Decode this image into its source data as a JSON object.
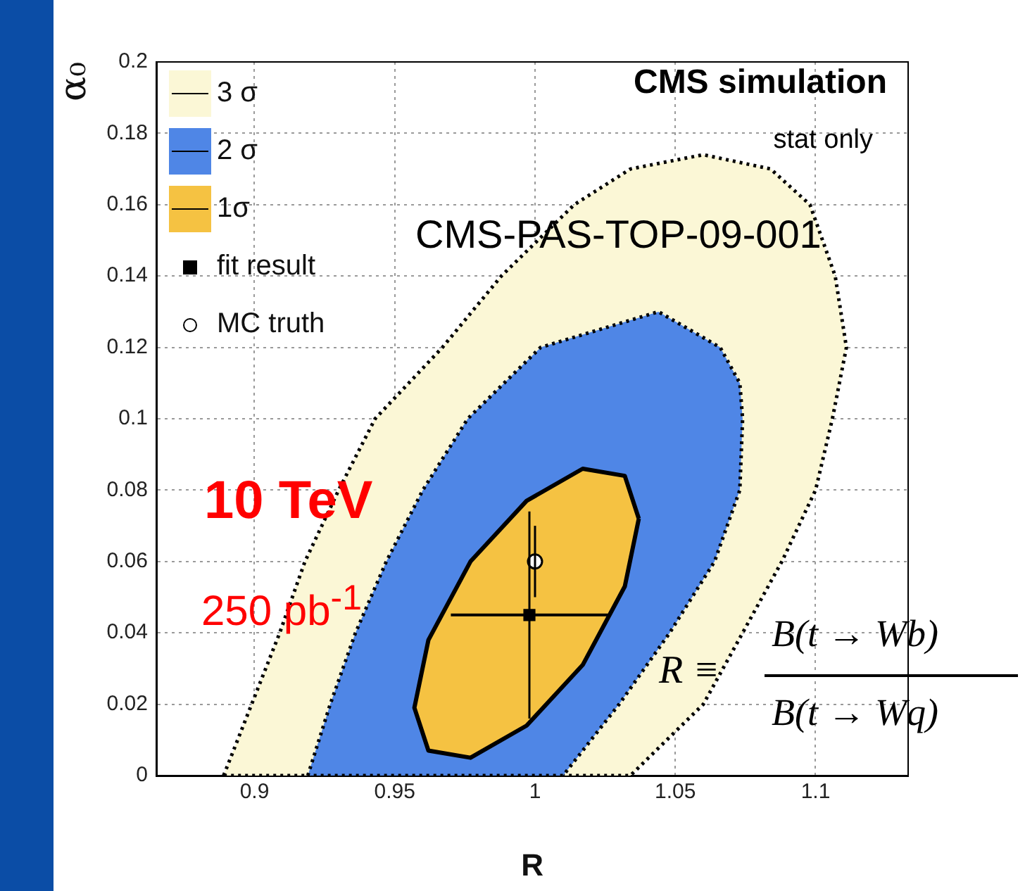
{
  "chart_data": {
    "type": "area",
    "xlabel": "R",
    "ylabel": "α₀",
    "xlim": [
      0.865,
      1.133
    ],
    "ylim": [
      0,
      0.2
    ],
    "xticks": [
      0.9,
      0.95,
      1,
      1.05,
      1.1
    ],
    "yticks": [
      0,
      0.02,
      0.04,
      0.06,
      0.08,
      0.1,
      0.12,
      0.14,
      0.16,
      0.18,
      0.2
    ],
    "grid": true,
    "legend": "top left",
    "annotations": [
      "CMS simulation",
      "stat only",
      "CMS-PAS-TOP-09-001",
      "10 TeV",
      "250 pb$^{-1}$",
      "R ≡",
      "B(t → Wb)",
      "B(t → Wq)"
    ],
    "series": [
      {
        "name": "3 σ",
        "color": "#fbf7d6",
        "line_style": "dotted",
        "x": [
          0.889,
          0.899,
          0.909,
          0.918,
          0.93,
          0.943,
          0.967,
          0.988,
          1.014,
          1.034,
          1.06,
          1.084,
          1.098,
          1.107,
          1.111,
          1.106,
          1.1,
          1.088,
          1.074,
          1.06,
          1.034
        ],
        "values": [
          0,
          0.02,
          0.04,
          0.06,
          0.08,
          0.1,
          0.12,
          0.14,
          0.16,
          0.17,
          0.174,
          0.17,
          0.16,
          0.14,
          0.12,
          0.1,
          0.08,
          0.06,
          0.04,
          0.02,
          0
        ]
      },
      {
        "name": "2 σ",
        "color": "#4f86e6",
        "line_style": "dotted",
        "x": [
          0.919,
          0.927,
          0.936,
          0.947,
          0.96,
          0.976,
          1.002,
          1.044,
          1.066,
          1.073,
          1.074,
          1.073,
          1.064,
          1.048,
          1.03,
          1.01
        ],
        "values": [
          0,
          0.02,
          0.04,
          0.06,
          0.08,
          0.1,
          0.12,
          0.13,
          0.12,
          0.11,
          0.1,
          0.08,
          0.06,
          0.04,
          0.02,
          0
        ]
      },
      {
        "name": "1σ",
        "color": "#f5c242",
        "line_style": "solid",
        "x": [
          1.037,
          1.032,
          1.017,
          0.997,
          0.977,
          0.962,
          0.957,
          0.962,
          0.977,
          0.997,
          1.017,
          1.032
        ],
        "values": [
          0.072,
          0.084,
          0.086,
          0.077,
          0.06,
          0.038,
          0.019,
          0.007,
          0.005,
          0.014,
          0.031,
          0.053
        ]
      },
      {
        "name": "fit result",
        "type": "scatter",
        "color": "#000000",
        "marker": "square",
        "x": [
          0.998
        ],
        "values": [
          0.045
        ],
        "xerrors": [
          0.028
        ],
        "errors": [
          0.029
        ]
      },
      {
        "name": "MC truth",
        "type": "scatter",
        "color": "#000000",
        "marker": "circle",
        "x": [
          1.0
        ],
        "values": [
          0.06
        ],
        "errors": [
          0.01
        ]
      }
    ]
  }
}
